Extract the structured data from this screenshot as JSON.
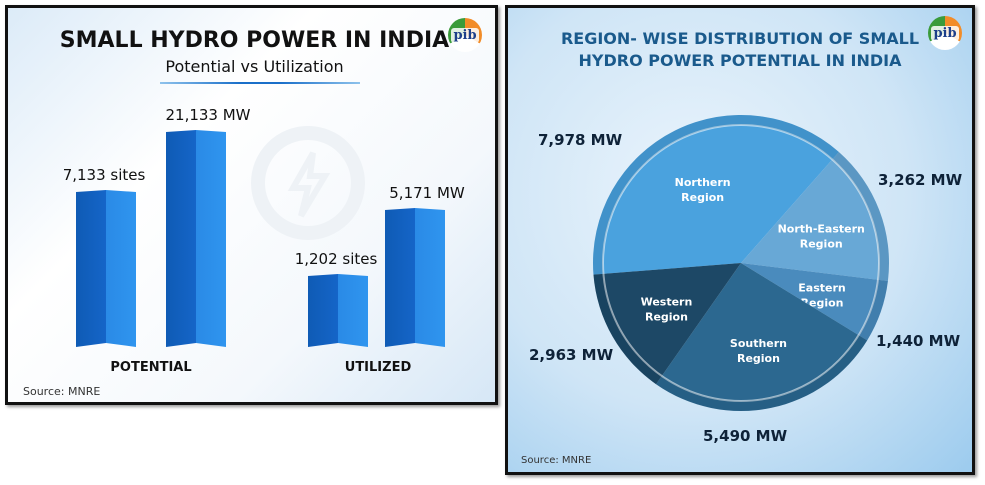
{
  "left_panel": {
    "title": "SMALL HYDRO POWER IN INDIA",
    "subtitle": "Potential vs Utilization",
    "source": "Source: MNRE",
    "logo_text": "pib"
  },
  "right_panel": {
    "title_line1": "REGION- WISE DISTRIBUTION OF SMALL",
    "title_line2": "HYDRO POWER POTENTIAL IN INDIA",
    "source": "Source: MNRE",
    "logo_text": "pib"
  },
  "chart_data": [
    {
      "type": "bar",
      "title": "SMALL HYDRO POWER IN INDIA — Potential vs Utilization",
      "categories": [
        "POTENTIAL",
        "UTILIZED"
      ],
      "series": [
        {
          "name": "sites",
          "values": [
            7133,
            1202
          ],
          "labels": [
            "7,133 sites",
            "1,202 sites"
          ]
        },
        {
          "name": "MW",
          "values": [
            21133,
            5171
          ],
          "labels": [
            "21,133 MW",
            "5,171 MW"
          ]
        }
      ],
      "colors": {
        "bar_dark": "#1565c8",
        "bar_light": "#2f95ef"
      }
    },
    {
      "type": "pie",
      "title": "REGION- WISE DISTRIBUTION OF SMALL HYDRO POWER POTENTIAL IN INDIA",
      "unit": "MW",
      "slices": [
        {
          "name": "Northern Region",
          "line1": "Northern",
          "line2": "Region",
          "value": 7978,
          "label": "7,978 MW",
          "color": "#4aa2de"
        },
        {
          "name": "North-Eastern Region",
          "line1": "North-Eastern",
          "line2": "Region",
          "value": 3262,
          "label": "3,262 MW",
          "color": "#68a8d6"
        },
        {
          "name": "Eastern Region",
          "line1": "Eastern",
          "line2": "Region",
          "value": 1440,
          "label": "1,440 MW",
          "color": "#4a8bbd"
        },
        {
          "name": "Southern Region",
          "line1": "Southern",
          "line2": "Region",
          "value": 5490,
          "label": "5,490 MW",
          "color": "#2c6890"
        },
        {
          "name": "Western Region",
          "line1": "Western",
          "line2": "Region",
          "value": 2963,
          "label": "2,963 MW",
          "color": "#1d4866"
        }
      ]
    }
  ]
}
